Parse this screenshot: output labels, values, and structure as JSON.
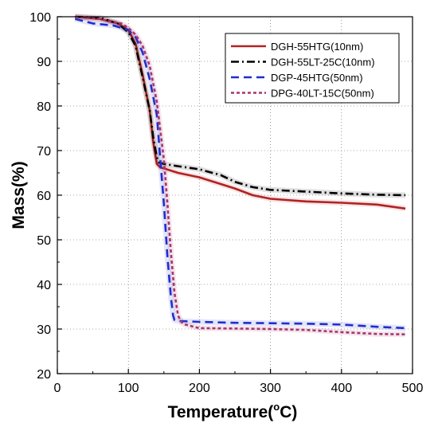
{
  "chart_data": {
    "type": "line",
    "xlabel": "Temperature(",
    "xlabel_degree": "o",
    "xlabel_unit": "C)",
    "ylabel": "Mass(%)",
    "xlim": [
      0,
      500
    ],
    "ylim": [
      20,
      100
    ],
    "xticks": [
      "0",
      "100",
      "200",
      "300",
      "400",
      "500"
    ],
    "yticks": [
      "20",
      "30",
      "40",
      "50",
      "60",
      "70",
      "80",
      "90",
      "100"
    ],
    "grid": true,
    "legend_position": "top-right",
    "series": [
      {
        "name": "DGH-55HTG(10nm)",
        "color": "#b22222",
        "dash": "solid",
        "x": [
          25,
          60,
          85,
          100,
          110,
          120,
          130,
          135,
          140,
          145,
          150,
          170,
          200,
          230,
          250,
          275,
          300,
          350,
          400,
          450,
          490
        ],
        "y": [
          100,
          99.5,
          98.5,
          97,
          94,
          87,
          79,
          72,
          67,
          66.2,
          66,
          65,
          64,
          62.5,
          61.5,
          60,
          59.2,
          58.6,
          58.3,
          57.9,
          57
        ]
      },
      {
        "name": "DGH-55LT-25C(10nm)",
        "color": "#000000",
        "dash": "dashdot",
        "x": [
          25,
          60,
          85,
          100,
          110,
          120,
          130,
          135,
          140,
          143,
          150,
          170,
          200,
          230,
          250,
          275,
          300,
          350,
          400,
          450,
          490
        ],
        "y": [
          100,
          99.8,
          98.5,
          96.5,
          93.5,
          86.5,
          79,
          73,
          68.5,
          67.3,
          67,
          66.5,
          65.8,
          64.5,
          63,
          61.8,
          61.2,
          60.8,
          60.4,
          60.1,
          60
        ]
      },
      {
        "name": "DGP-45HTG(50nm)",
        "color": "#1f2ecf",
        "dash": "dashed",
        "x": [
          25,
          50,
          80,
          100,
          110,
          120,
          130,
          140,
          145,
          150,
          155,
          160,
          163,
          165,
          170,
          200,
          250,
          300,
          350,
          400,
          450,
          490
        ],
        "y": [
          99.5,
          98.5,
          98,
          97,
          95.5,
          92,
          86,
          78,
          68,
          58,
          46,
          37,
          33,
          32,
          31.8,
          31.6,
          31.4,
          31.3,
          31.2,
          31,
          30.5,
          30.2
        ]
      },
      {
        "name": "DPG-40LT-15C(50nm)",
        "color": "#a8356e",
        "dash": "dotted",
        "x": [
          25,
          60,
          90,
          100,
          110,
          120,
          130,
          140,
          150,
          155,
          160,
          165,
          170,
          175,
          180,
          200,
          250,
          300,
          350,
          400,
          450,
          490
        ],
        "y": [
          100,
          99.5,
          98.5,
          97.5,
          96,
          93.5,
          89,
          81,
          68,
          58,
          47,
          38,
          33,
          31.5,
          31,
          30.2,
          30.1,
          30,
          29.8,
          29.3,
          28.9,
          28.8
        ]
      }
    ]
  }
}
